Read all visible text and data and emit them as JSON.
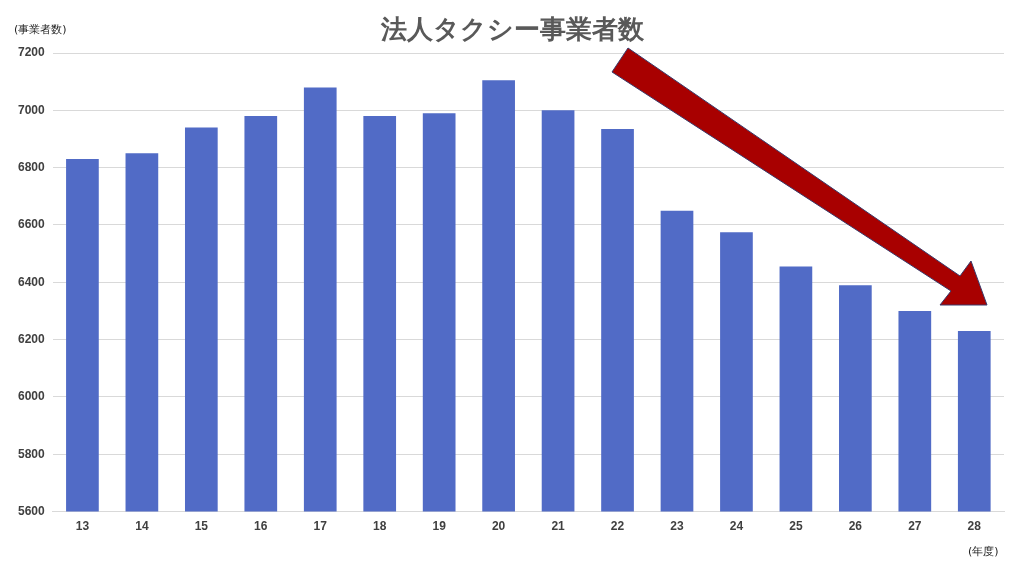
{
  "chart_data": {
    "type": "bar",
    "title": "法人タクシー事業者数",
    "ylabel": "(事業者数)",
    "xlabel": "(年度)",
    "categories": [
      "13",
      "14",
      "15",
      "16",
      "17",
      "18",
      "19",
      "20",
      "21",
      "22",
      "23",
      "24",
      "25",
      "26",
      "27",
      "28"
    ],
    "values": [
      6830,
      6850,
      6940,
      6980,
      7080,
      6980,
      6990,
      7105,
      7000,
      6935,
      6650,
      6575,
      6455,
      6390,
      6300,
      6230
    ],
    "color": "#516bc6",
    "ylim": [
      5600,
      7200
    ],
    "yticks": [
      5600,
      5800,
      6000,
      6200,
      6400,
      6600,
      6800,
      7000,
      7200
    ],
    "grid": "y",
    "legend": false
  }
}
